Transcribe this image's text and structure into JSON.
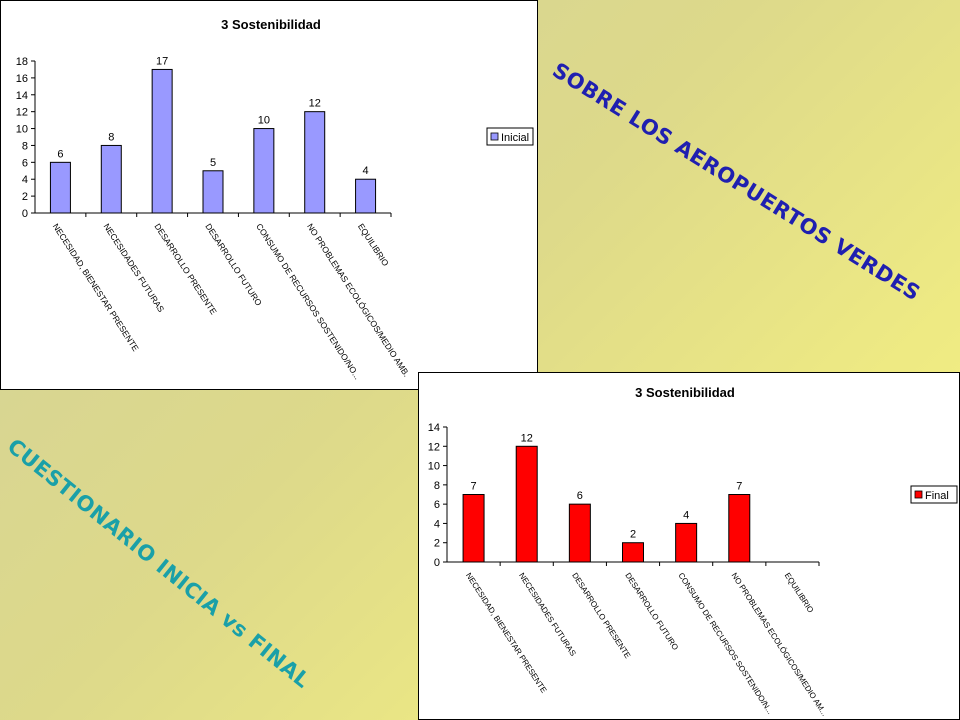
{
  "headings": {
    "right": "SOBRE LOS AEROPUERTOS VERDES",
    "left": "CUESTIONARIO INICIA vs FINAL",
    "right_color": "#1f1fb0",
    "left_color": "#1aa0a8"
  },
  "chart_data": [
    {
      "type": "bar",
      "title": "3 Sostenibilidad",
      "categories": [
        "NECESIDAD, BIENESTAR PRESENTE",
        "NECESIDADES FUTURAS",
        "DESARROLLO PRESENTE",
        "DESARROLLO FUTURO",
        "CONSUMO DE RECURSOS SOSTENIDO/NO...",
        "NO PROBLEMAS ECOLÓGICOS/MEDIO AMB.",
        "EQUILIBRIO"
      ],
      "series": [
        {
          "name": "Inicial",
          "values": [
            6,
            8,
            17,
            5,
            10,
            12,
            4
          ],
          "color": "#9999ff"
        }
      ],
      "ylim": [
        0,
        18
      ],
      "yticks": [
        0,
        2,
        4,
        6,
        8,
        10,
        12,
        14,
        16,
        18
      ],
      "grid": false,
      "legend": "right"
    },
    {
      "type": "bar",
      "title": "3 Sostenibilidad",
      "categories": [
        "NECESIDAD, BIENESTAR PRESENTE",
        "NECESIDADES FUTURAS",
        "DESARROLLO PRESENTE",
        "DESARROLLO FUTURO",
        "CONSUMO DE RECURSOS SOSTENIDO/N...",
        "NO PROBLEMAS ECOLÓGICOS/MEDIO AM...",
        "EQUILIBRIO"
      ],
      "series": [
        {
          "name": "Final",
          "values": [
            7,
            12,
            6,
            2,
            4,
            7,
            0
          ],
          "color": "#ff0000"
        }
      ],
      "ylim": [
        0,
        14
      ],
      "yticks": [
        0,
        2,
        4,
        6,
        8,
        10,
        12,
        14
      ],
      "grid": false,
      "legend": "right"
    }
  ]
}
